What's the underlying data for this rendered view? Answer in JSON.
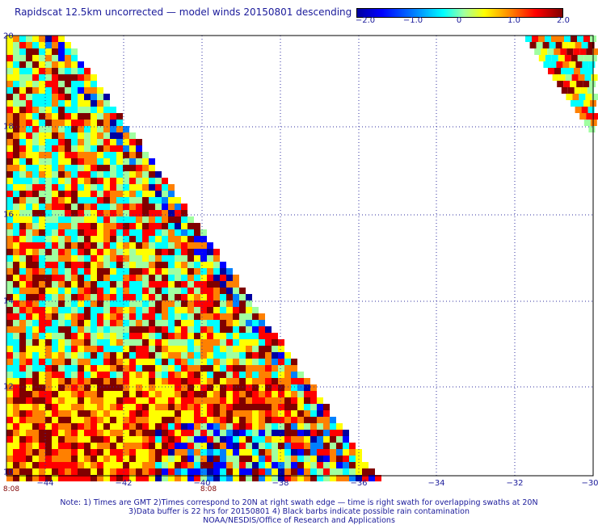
{
  "title": "Rapidscat 12.5km uncorrected — model winds 20150801 descending",
  "colorbar": {
    "ticks": [
      "−2.0",
      "−1.0",
      "0",
      "1.0",
      "2.0"
    ],
    "colors": [
      "#0000a0",
      "#0000ff",
      "#0080ff",
      "#00ffff",
      "#a0ffa0",
      "#ffff00",
      "#ff8000",
      "#ff0000",
      "#800000"
    ]
  },
  "axes": {
    "lon_ticks": [
      "−44",
      "−42",
      "−40",
      "−38",
      "−36",
      "−34",
      "−32",
      "−30"
    ],
    "lat_ticks": [
      "20",
      "18",
      "16",
      "14",
      "12",
      "10"
    ]
  },
  "swath_times": [
    "8:08",
    "8:08"
  ],
  "notes": [
    "Note: 1) Times are GMT 2)Times correspond to 20N at right swath edge — time is right swath for overlapping swaths at 20N",
    "3)Data buffer is 22 hrs for 20150801 4) Black barbs indicate possible rain contamination",
    "NOAA/NESDIS/Office of Research and Applications"
  ]
}
